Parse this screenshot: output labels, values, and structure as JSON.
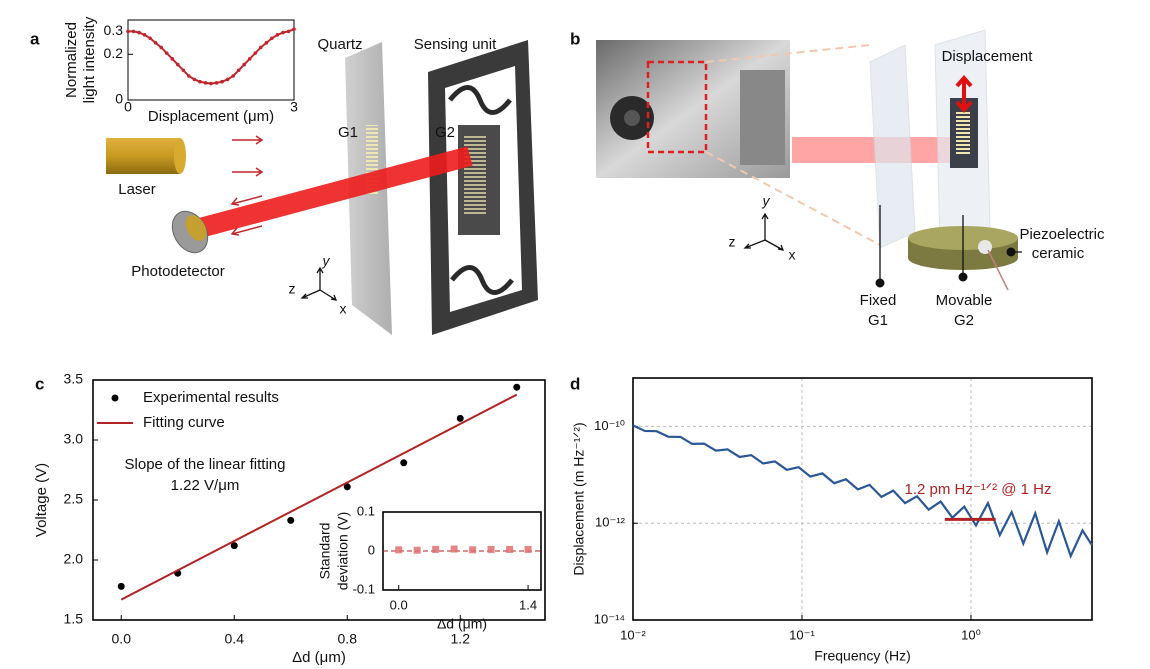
{
  "panel_a": {
    "label": "a",
    "quartz": "Quartz",
    "sensing_unit": "Sensing unit",
    "g1": "G1",
    "g2": "G2",
    "laser": "Laser",
    "photodetector": "Photodetector",
    "axes": {
      "z": "z",
      "y": "y",
      "x": "x"
    }
  },
  "panel_b": {
    "label": "b",
    "displacement": "Displacement",
    "piezo": [
      "Piezoelectric",
      "ceramic"
    ],
    "fixed": [
      "Fixed",
      "G1"
    ],
    "movable": [
      "Movable",
      "G2"
    ],
    "axes": {
      "z": "z",
      "y": "y",
      "x": "x"
    }
  },
  "chart_data": [
    {
      "type": "line",
      "xlabel": "Displacement (μm)",
      "ylabel": [
        "Normalized",
        "light intensity"
      ],
      "xlim": [
        0,
        3
      ],
      "xticks": [
        0,
        3
      ],
      "ylim": [
        0,
        0.35
      ],
      "yticks": [
        0,
        0.2,
        0.3
      ],
      "markers": true,
      "series": [
        {
          "color": "#c0272d",
          "x": [
            0,
            0.1,
            0.2,
            0.3,
            0.4,
            0.5,
            0.6,
            0.7,
            0.8,
            0.9,
            1.0,
            1.1,
            1.2,
            1.3,
            1.4,
            1.5,
            1.6,
            1.7,
            1.8,
            1.9,
            2.0,
            2.1,
            2.2,
            2.3,
            2.4,
            2.5,
            2.6,
            2.7,
            2.8,
            2.9,
            3.0
          ],
          "values": [
            0.3,
            0.3,
            0.295,
            0.285,
            0.27,
            0.25,
            0.23,
            0.205,
            0.18,
            0.155,
            0.13,
            0.105,
            0.09,
            0.08,
            0.075,
            0.072,
            0.075,
            0.08,
            0.09,
            0.105,
            0.13,
            0.155,
            0.18,
            0.205,
            0.23,
            0.25,
            0.27,
            0.285,
            0.295,
            0.3,
            0.31
          ]
        }
      ]
    },
    {
      "type": "scatter",
      "panel_label": "c",
      "xlabel": "Δd (μm)",
      "ylabel": "Voltage (V)",
      "xlim": [
        -0.1,
        1.5
      ],
      "xticks": [
        {
          "value": 0,
          "label": "0.0"
        },
        0.4,
        0.8,
        1.2
      ],
      "ylim": [
        1.5,
        3.5
      ],
      "yticks": [
        1.5,
        {
          "value": 2,
          "label": "2.0"
        },
        2.5,
        {
          "value": 3,
          "label": "3.0"
        },
        3.5
      ],
      "legend": "upper left",
      "annotations": [
        "Slope of the linear fitting",
        "1.22 V/μm"
      ],
      "series": [
        {
          "name": "Experimental results",
          "color": "#000000",
          "x": [
            0,
            0.2,
            0.4,
            0.6,
            0.8,
            1.0,
            1.2,
            1.4
          ],
          "values": [
            1.78,
            1.89,
            2.12,
            2.33,
            2.61,
            2.81,
            3.18,
            3.44
          ]
        },
        {
          "name": "Fitting curve",
          "type": "line",
          "color": "#b22222",
          "x": [
            0,
            1.4
          ],
          "values": [
            1.67,
            3.378
          ]
        }
      ]
    },
    {
      "type": "scatter",
      "xlabel": "Δd (μm)",
      "ylabel": [
        "Standard",
        "deviation (V)"
      ],
      "xlim": [
        -0.17,
        1.54
      ],
      "xticks": [
        {
          "value": 0,
          "label": "0.0"
        },
        1.4
      ],
      "ylim": [
        -0.1,
        0.1
      ],
      "yticks": [
        -0.1,
        0,
        0.1
      ],
      "reference_line": 0,
      "marker": "square",
      "series": [
        {
          "color": "#e07070",
          "x": [
            0,
            0.2,
            0.4,
            0.6,
            0.8,
            1.0,
            1.2,
            1.4
          ],
          "values": [
            0.003,
            0.002,
            0.004,
            0.005,
            0.003,
            0.004,
            0.004,
            0.004
          ]
        }
      ]
    },
    {
      "type": "line",
      "panel_label": "d",
      "xlabel": "Frequency (Hz)",
      "ylabel": "Displacement (m Hz⁻¹ᐟ²)",
      "xlog": true,
      "ylog": true,
      "grid": true,
      "xlim": [
        0.01,
        5.2
      ],
      "xticks": [
        {
          "value": 0.01,
          "label": "10⁻²"
        },
        {
          "value": 0.1,
          "label": "10⁻¹"
        },
        {
          "value": 1,
          "label": "10⁰"
        }
      ],
      "ylim": [
        1e-14,
        1e-09
      ],
      "yticks": [
        {
          "value": 1e-14,
          "label": "10⁻¹⁴"
        },
        {
          "value": 1e-12,
          "label": "10⁻¹²"
        },
        {
          "value": 1e-10,
          "label": "10⁻¹⁰"
        }
      ],
      "annotations": [
        "1.2 pm Hz⁻¹ᐟ² @ 1 Hz"
      ],
      "highlight": {
        "x": [
          0.7,
          1.4
        ],
        "value": 1.2e-12,
        "color": "#b22222"
      },
      "series": [
        {
          "color": "#2b5797",
          "x": [
            0.01,
            0.01175,
            0.0138,
            0.0162,
            0.0191,
            0.0224,
            0.0263,
            0.0309,
            0.0363,
            0.0427,
            0.0501,
            0.0589,
            0.0692,
            0.0813,
            0.0955,
            0.112,
            0.132,
            0.155,
            0.182,
            0.214,
            0.251,
            0.295,
            0.347,
            0.407,
            0.479,
            0.562,
            0.661,
            0.776,
            0.912,
            1.07,
            1.26,
            1.48,
            1.74,
            2.04,
            2.4,
            2.82,
            3.31,
            3.89,
            4.57,
            5.2
          ],
          "values": [
            1.05e-10,
            8.05e-11,
            7.96e-11,
            6.12e-11,
            6.05e-11,
            4.35e-11,
            4.41e-11,
            3.16e-11,
            3.35e-11,
            2.34e-11,
            2.55e-11,
            1.71e-11,
            1.89e-11,
            1.27e-11,
            1.44e-11,
            9.2e-12,
            1.07e-11,
            6.7e-12,
            8.1e-12,
            5e-12,
            6.2e-12,
            3.5e-12,
            4.7e-12,
            2.6e-12,
            3.6e-12,
            1.9e-12,
            2.8e-12,
            1.3e-12,
            2.2e-12,
            9e-13,
            2.6e-12,
            5.7e-13,
            1.7e-12,
            3.8e-13,
            1.6e-12,
            2.5e-13,
            1.1e-12,
            2.1e-13,
            7.1e-13,
            3.5e-13
          ]
        }
      ]
    }
  ]
}
